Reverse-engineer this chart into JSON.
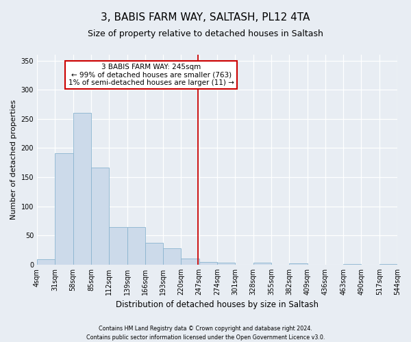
{
  "title": "3, BABIS FARM WAY, SALTASH, PL12 4TA",
  "subtitle": "Size of property relative to detached houses in Saltash",
  "xlabel": "Distribution of detached houses by size in Saltash",
  "ylabel": "Number of detached properties",
  "footnote1": "Contains HM Land Registry data © Crown copyright and database right 2024.",
  "footnote2": "Contains public sector information licensed under the Open Government Licence v3.0.",
  "property_size": 245,
  "property_label": "3 BABIS FARM WAY: 245sqm",
  "annotation_line1": "← 99% of detached houses are smaller (763)",
  "annotation_line2": "1% of semi-detached houses are larger (11) →",
  "bar_color": "#ccdaea",
  "bar_edge_color": "#8ab4cf",
  "vline_color": "#cc0000",
  "annotation_box_edge_color": "#cc0000",
  "bin_edges": [
    4,
    31,
    58,
    85,
    112,
    139,
    166,
    193,
    220,
    247,
    274,
    301,
    328,
    355,
    382,
    409,
    436,
    463,
    490,
    517,
    544
  ],
  "bar_heights": [
    9,
    191,
    260,
    167,
    65,
    65,
    37,
    28,
    11,
    5,
    3,
    0,
    3,
    0,
    2,
    0,
    0,
    1,
    0,
    1
  ],
  "ylim": [
    0,
    360
  ],
  "yticks": [
    0,
    50,
    100,
    150,
    200,
    250,
    300,
    350
  ],
  "background_color": "#e8edf3",
  "plot_bg_color": "#e8edf3",
  "grid_color": "#ffffff",
  "title_fontsize": 11,
  "subtitle_fontsize": 9,
  "tick_fontsize": 7,
  "ylabel_fontsize": 8,
  "xlabel_fontsize": 8.5,
  "footnote_fontsize": 5.8,
  "annotation_fontsize": 7.5
}
